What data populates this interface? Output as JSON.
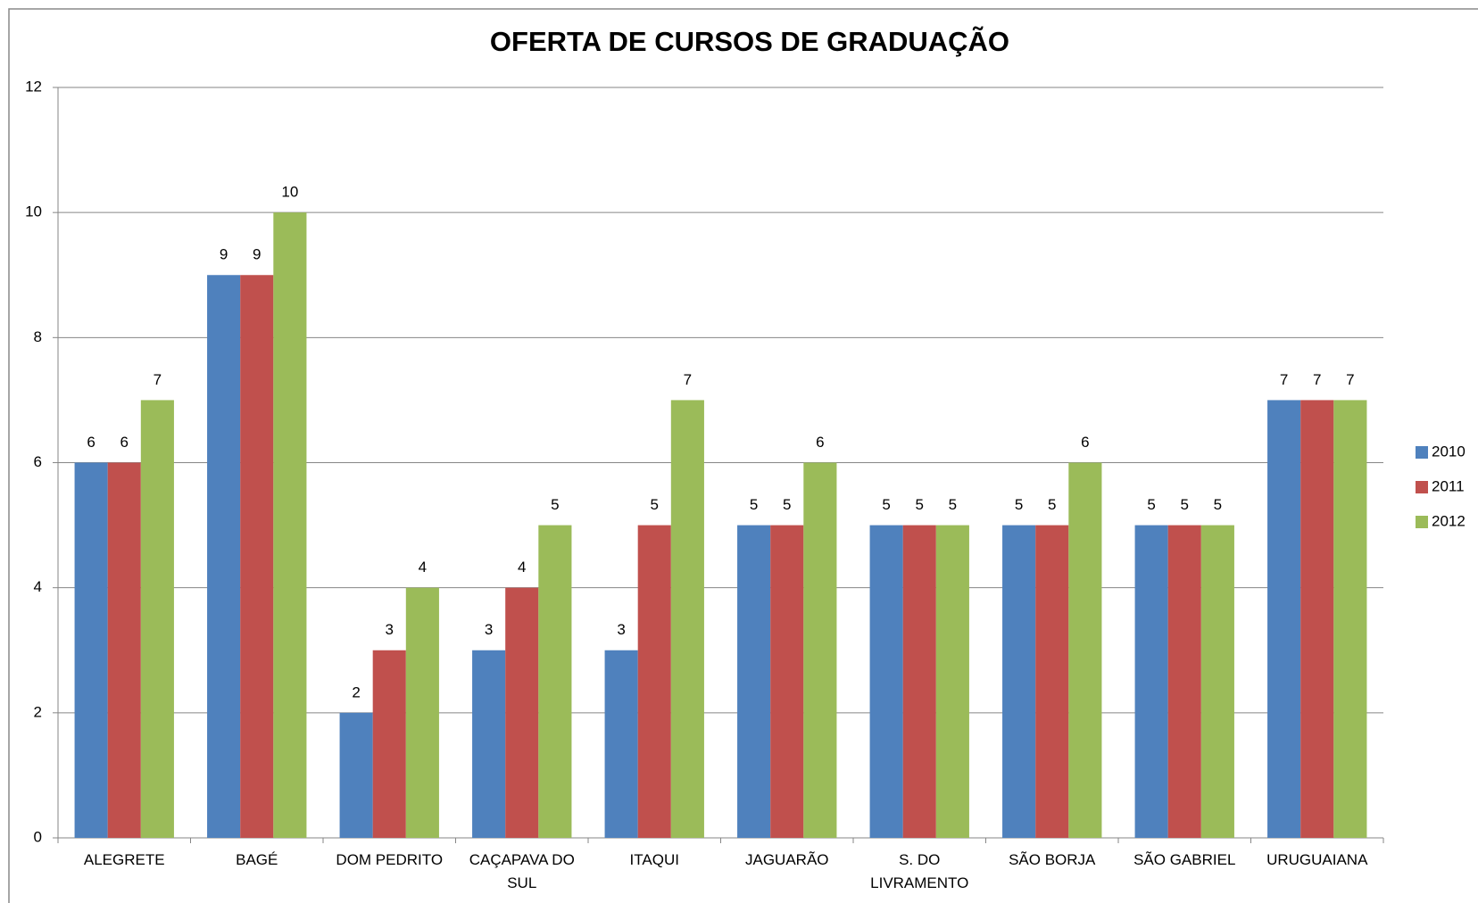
{
  "chart_data": {
    "type": "bar",
    "title": "OFERTA DE CURSOS DE GRADUAÇÃO",
    "categories": [
      "ALEGRETE",
      "BAGÉ",
      "DOM PEDRITO",
      "CAÇAPAVA DO SUL",
      "ITAQUI",
      "JAGUARÃO",
      "S. DO LIVRAMENTO",
      "SÃO BORJA",
      "SÃO GABRIEL",
      "URUGUAIANA"
    ],
    "series": [
      {
        "name": "2010",
        "color": "#4f81bd",
        "values": [
          6,
          9,
          2,
          3,
          3,
          5,
          5,
          5,
          5,
          7
        ]
      },
      {
        "name": "2011",
        "color": "#c0504d",
        "values": [
          6,
          9,
          3,
          4,
          5,
          5,
          5,
          5,
          5,
          7
        ]
      },
      {
        "name": "2012",
        "color": "#9bbb59",
        "values": [
          7,
          10,
          4,
          5,
          7,
          6,
          5,
          6,
          5,
          7
        ]
      }
    ],
    "ylim": [
      0,
      12
    ],
    "yticks": [
      0,
      2,
      4,
      6,
      8,
      10,
      12
    ],
    "grid": true,
    "legend": "right"
  }
}
